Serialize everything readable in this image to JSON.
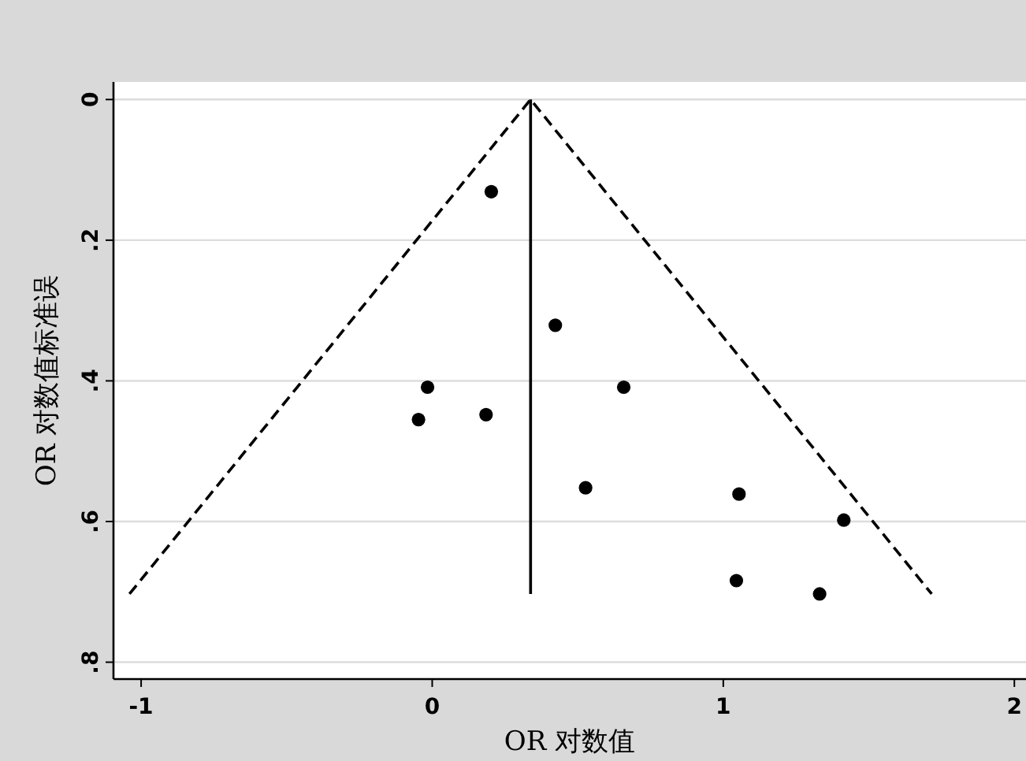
{
  "chart_data": {
    "type": "scatter",
    "xlabel": "OR 对数值",
    "ylabel": "OR 对数值标准误",
    "xlim": [
      -1.095,
      2.04
    ],
    "ylim": [
      0.824,
      -0.025
    ],
    "xticks": [
      -1,
      0,
      1,
      2
    ],
    "yticks": [
      0,
      {
        "value": 0.2,
        "label": ".2"
      },
      {
        "value": 0.4,
        "label": ".4"
      },
      {
        "value": 0.6,
        "label": ".6"
      },
      {
        "value": 0.8,
        "label": ".8"
      }
    ],
    "grid": "y",
    "series": [
      {
        "type": "scatter",
        "marker": "circle",
        "color": "#000000",
        "x": [
          0.203,
          0.423,
          -0.016,
          0.658,
          -0.047,
          0.185,
          0.527,
          1.054,
          1.414,
          1.045,
          1.331
        ],
        "values": [
          0.131,
          0.321,
          0.409,
          0.409,
          0.455,
          0.448,
          0.552,
          0.561,
          0.598,
          0.684,
          0.703
        ]
      },
      {
        "type": "line",
        "line_style": "dashed",
        "color": "#000000",
        "x": [
          -1.04,
          0.338,
          1.716
        ],
        "values": [
          0.703,
          0,
          0.703
        ]
      },
      {
        "type": "line",
        "line_style": "solid",
        "color": "#000000",
        "x": [
          0.338,
          0.338
        ],
        "values": [
          0,
          0.703
        ]
      }
    ]
  }
}
